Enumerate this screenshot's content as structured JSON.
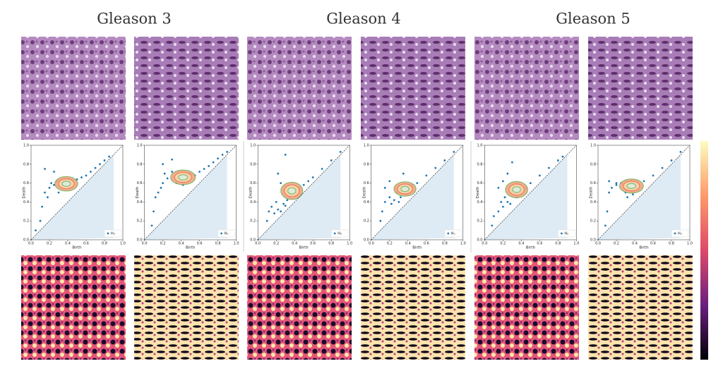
{
  "header": {
    "columns": [
      "Gleason 3",
      "Gleason 4",
      "Gleason 5"
    ]
  },
  "chart_data": [
    {
      "type": "scatter",
      "xlabel": "Birth",
      "ylabel": "Death",
      "xlim": [
        0,
        1
      ],
      "ylim": [
        0,
        1
      ],
      "xticks": [
        {
          "value": 0,
          "label": "0.0"
        },
        {
          "value": 0.2,
          "label": "0.2"
        },
        {
          "value": 0.4,
          "label": "0.4"
        },
        {
          "value": 0.6,
          "label": "0.6"
        },
        {
          "value": 0.8,
          "label": "0.8"
        },
        {
          "value": 1,
          "label": "1.0"
        }
      ],
      "yticks": [
        {
          "value": 0,
          "label": "0.0"
        },
        {
          "value": 0.2,
          "label": "0.2"
        },
        {
          "value": 0.4,
          "label": "0.4"
        },
        {
          "value": 0.6,
          "label": "0.6"
        },
        {
          "value": 0.8,
          "label": "0.8"
        },
        {
          "value": 1,
          "label": "1.0"
        }
      ],
      "series": [
        {
          "name": "H₀",
          "color": "#1f77b4",
          "x": [
            0.05,
            0.1,
            0.12,
            0.15,
            0.18,
            0.2,
            0.22,
            0.25,
            0.28,
            0.3,
            0.33,
            0.35,
            0.38,
            0.4,
            0.42,
            0.45,
            0.5,
            0.55,
            0.6,
            0.65,
            0.7,
            0.75,
            0.8,
            0.85,
            0.15,
            0.25
          ],
          "values": [
            0.1,
            0.2,
            0.35,
            0.5,
            0.45,
            0.55,
            0.6,
            0.58,
            0.62,
            0.5,
            0.6,
            0.55,
            0.58,
            0.56,
            0.6,
            0.62,
            0.64,
            0.66,
            0.68,
            0.72,
            0.76,
            0.8,
            0.84,
            0.88,
            0.75,
            0.72
          ]
        }
      ]
    },
    {
      "type": "scatter",
      "xlabel": "Birth",
      "ylabel": "Death",
      "xlim": [
        0,
        1
      ],
      "ylim": [
        0,
        1
      ],
      "xticks": [
        {
          "value": 0,
          "label": "0.0"
        },
        {
          "value": 0.2,
          "label": "0.2"
        },
        {
          "value": 0.4,
          "label": "0.4"
        },
        {
          "value": 0.6,
          "label": "0.6"
        },
        {
          "value": 0.8,
          "label": "0.8"
        },
        {
          "value": 1,
          "label": "1.0"
        }
      ],
      "yticks": [
        {
          "value": 0,
          "label": "0.0"
        },
        {
          "value": 0.2,
          "label": "0.2"
        },
        {
          "value": 0.4,
          "label": "0.4"
        },
        {
          "value": 0.6,
          "label": "0.6"
        },
        {
          "value": 0.8,
          "label": "0.8"
        },
        {
          "value": 1,
          "label": "1.0"
        }
      ],
      "series": [
        {
          "name": "H₀",
          "color": "#1f77b4",
          "x": [
            0.08,
            0.1,
            0.12,
            0.15,
            0.18,
            0.2,
            0.22,
            0.25,
            0.3,
            0.35,
            0.4,
            0.42,
            0.45,
            0.48,
            0.5,
            0.55,
            0.6,
            0.65,
            0.7,
            0.75,
            0.8,
            0.85,
            0.9,
            0.2,
            0.3
          ],
          "values": [
            0.15,
            0.3,
            0.45,
            0.5,
            0.55,
            0.6,
            0.7,
            0.65,
            0.72,
            0.6,
            0.65,
            0.58,
            0.62,
            0.66,
            0.7,
            0.68,
            0.72,
            0.75,
            0.78,
            0.82,
            0.86,
            0.9,
            0.93,
            0.8,
            0.85
          ]
        }
      ]
    },
    {
      "type": "scatter",
      "xlabel": "Birth",
      "ylabel": "Death",
      "xlim": [
        0,
        1
      ],
      "ylim": [
        0,
        1
      ],
      "xticks": [
        {
          "value": 0,
          "label": "0.0"
        },
        {
          "value": 0.2,
          "label": "0.2"
        },
        {
          "value": 0.4,
          "label": "0.4"
        },
        {
          "value": 0.6,
          "label": "0.6"
        },
        {
          "value": 0.8,
          "label": "0.8"
        },
        {
          "value": 1,
          "label": "1.0"
        }
      ],
      "yticks": [
        {
          "value": 0,
          "label": "0.0"
        },
        {
          "value": 0.2,
          "label": "0.2"
        },
        {
          "value": 0.4,
          "label": "0.4"
        },
        {
          "value": 0.6,
          "label": "0.6"
        },
        {
          "value": 0.8,
          "label": "0.8"
        },
        {
          "value": 1,
          "label": "1.0"
        }
      ],
      "series": [
        {
          "name": "H₀",
          "color": "#1f77b4",
          "x": [
            0.1,
            0.12,
            0.15,
            0.18,
            0.2,
            0.22,
            0.25,
            0.28,
            0.3,
            0.32,
            0.35,
            0.4,
            0.45,
            0.5,
            0.55,
            0.6,
            0.7,
            0.8,
            0.9,
            0.3,
            0.25,
            0.22
          ],
          "values": [
            0.2,
            0.3,
            0.35,
            0.28,
            0.4,
            0.32,
            0.3,
            0.38,
            0.36,
            0.42,
            0.45,
            0.5,
            0.55,
            0.58,
            0.62,
            0.66,
            0.75,
            0.84,
            0.93,
            0.9,
            0.6,
            0.7
          ]
        }
      ]
    },
    {
      "type": "scatter",
      "xlabel": "Birth",
      "ylabel": "Death",
      "xlim": [
        0,
        1
      ],
      "ylim": [
        0,
        1
      ],
      "xticks": [
        {
          "value": 0,
          "label": "0.0"
        },
        {
          "value": 0.2,
          "label": "0.2"
        },
        {
          "value": 0.4,
          "label": "0.4"
        },
        {
          "value": 0.6,
          "label": "0.6"
        },
        {
          "value": 0.8,
          "label": "0.8"
        },
        {
          "value": 1,
          "label": "1.0"
        }
      ],
      "yticks": [
        {
          "value": 0,
          "label": "0.0"
        },
        {
          "value": 0.2,
          "label": "0.2"
        },
        {
          "value": 0.4,
          "label": "0.4"
        },
        {
          "value": 0.6,
          "label": "0.6"
        },
        {
          "value": 0.8,
          "label": "0.8"
        },
        {
          "value": 1,
          "label": "1.0"
        }
      ],
      "series": [
        {
          "name": "H₀",
          "color": "#1f77b4",
          "x": [
            0.1,
            0.12,
            0.15,
            0.2,
            0.22,
            0.25,
            0.28,
            0.3,
            0.32,
            0.35,
            0.38,
            0.4,
            0.45,
            0.5,
            0.6,
            0.7,
            0.8,
            0.9,
            0.2,
            0.35,
            0.15
          ],
          "values": [
            0.2,
            0.3,
            0.4,
            0.45,
            0.38,
            0.42,
            0.5,
            0.4,
            0.45,
            0.5,
            0.48,
            0.55,
            0.58,
            0.6,
            0.68,
            0.76,
            0.84,
            0.93,
            0.62,
            0.7,
            0.55
          ]
        }
      ]
    },
    {
      "type": "scatter",
      "xlabel": "Birth",
      "ylabel": "Death",
      "xlim": [
        0,
        1
      ],
      "ylim": [
        0,
        1
      ],
      "xticks": [
        {
          "value": 0,
          "label": "0.0"
        },
        {
          "value": 0.2,
          "label": "0.2"
        },
        {
          "value": 0.4,
          "label": "0.4"
        },
        {
          "value": 0.6,
          "label": "0.6"
        },
        {
          "value": 0.8,
          "label": "0.8"
        },
        {
          "value": 1,
          "label": "1.0"
        }
      ],
      "yticks": [
        {
          "value": 0,
          "label": "0.0"
        },
        {
          "value": 0.2,
          "label": "0.2"
        },
        {
          "value": 0.4,
          "label": "0.4"
        },
        {
          "value": 0.6,
          "label": "0.6"
        },
        {
          "value": 0.8,
          "label": "0.8"
        },
        {
          "value": 1,
          "label": "1.0"
        }
      ],
      "series": [
        {
          "name": "H₀",
          "color": "#1f77b4",
          "x": [
            0.08,
            0.1,
            0.15,
            0.18,
            0.2,
            0.22,
            0.25,
            0.28,
            0.3,
            0.35,
            0.4,
            0.45,
            0.5,
            0.6,
            0.7,
            0.8,
            0.85,
            0.15,
            0.2,
            0.25,
            0.3
          ],
          "values": [
            0.15,
            0.25,
            0.3,
            0.4,
            0.35,
            0.45,
            0.4,
            0.38,
            0.5,
            0.45,
            0.52,
            0.55,
            0.6,
            0.68,
            0.76,
            0.84,
            0.88,
            0.55,
            0.62,
            0.7,
            0.82
          ]
        }
      ]
    },
    {
      "type": "scatter",
      "xlabel": "Birth",
      "ylabel": "Death",
      "xlim": [
        0,
        1
      ],
      "ylim": [
        0,
        1
      ],
      "xticks": [
        {
          "value": 0,
          "label": "0.0"
        },
        {
          "value": 0.2,
          "label": "0.2"
        },
        {
          "value": 0.4,
          "label": "0.4"
        },
        {
          "value": 0.6,
          "label": "0.6"
        },
        {
          "value": 0.8,
          "label": "0.8"
        },
        {
          "value": 1,
          "label": "1.0"
        }
      ],
      "yticks": [
        {
          "value": 0,
          "label": "0.0"
        },
        {
          "value": 0.2,
          "label": "0.2"
        },
        {
          "value": 0.4,
          "label": "0.4"
        },
        {
          "value": 0.6,
          "label": "0.6"
        },
        {
          "value": 0.8,
          "label": "0.8"
        },
        {
          "value": 1,
          "label": "1.0"
        }
      ],
      "series": [
        {
          "name": "H₀",
          "color": "#1f77b4",
          "x": [
            0.08,
            0.1,
            0.12,
            0.15,
            0.2,
            0.25,
            0.3,
            0.32,
            0.35,
            0.38,
            0.4,
            0.45,
            0.5,
            0.6,
            0.7,
            0.8,
            0.9,
            0.12,
            0.2
          ],
          "values": [
            0.15,
            0.3,
            0.5,
            0.55,
            0.58,
            0.6,
            0.5,
            0.45,
            0.52,
            0.48,
            0.55,
            0.58,
            0.62,
            0.68,
            0.76,
            0.84,
            0.93,
            0.62,
            0.6
          ]
        }
      ]
    }
  ]
}
